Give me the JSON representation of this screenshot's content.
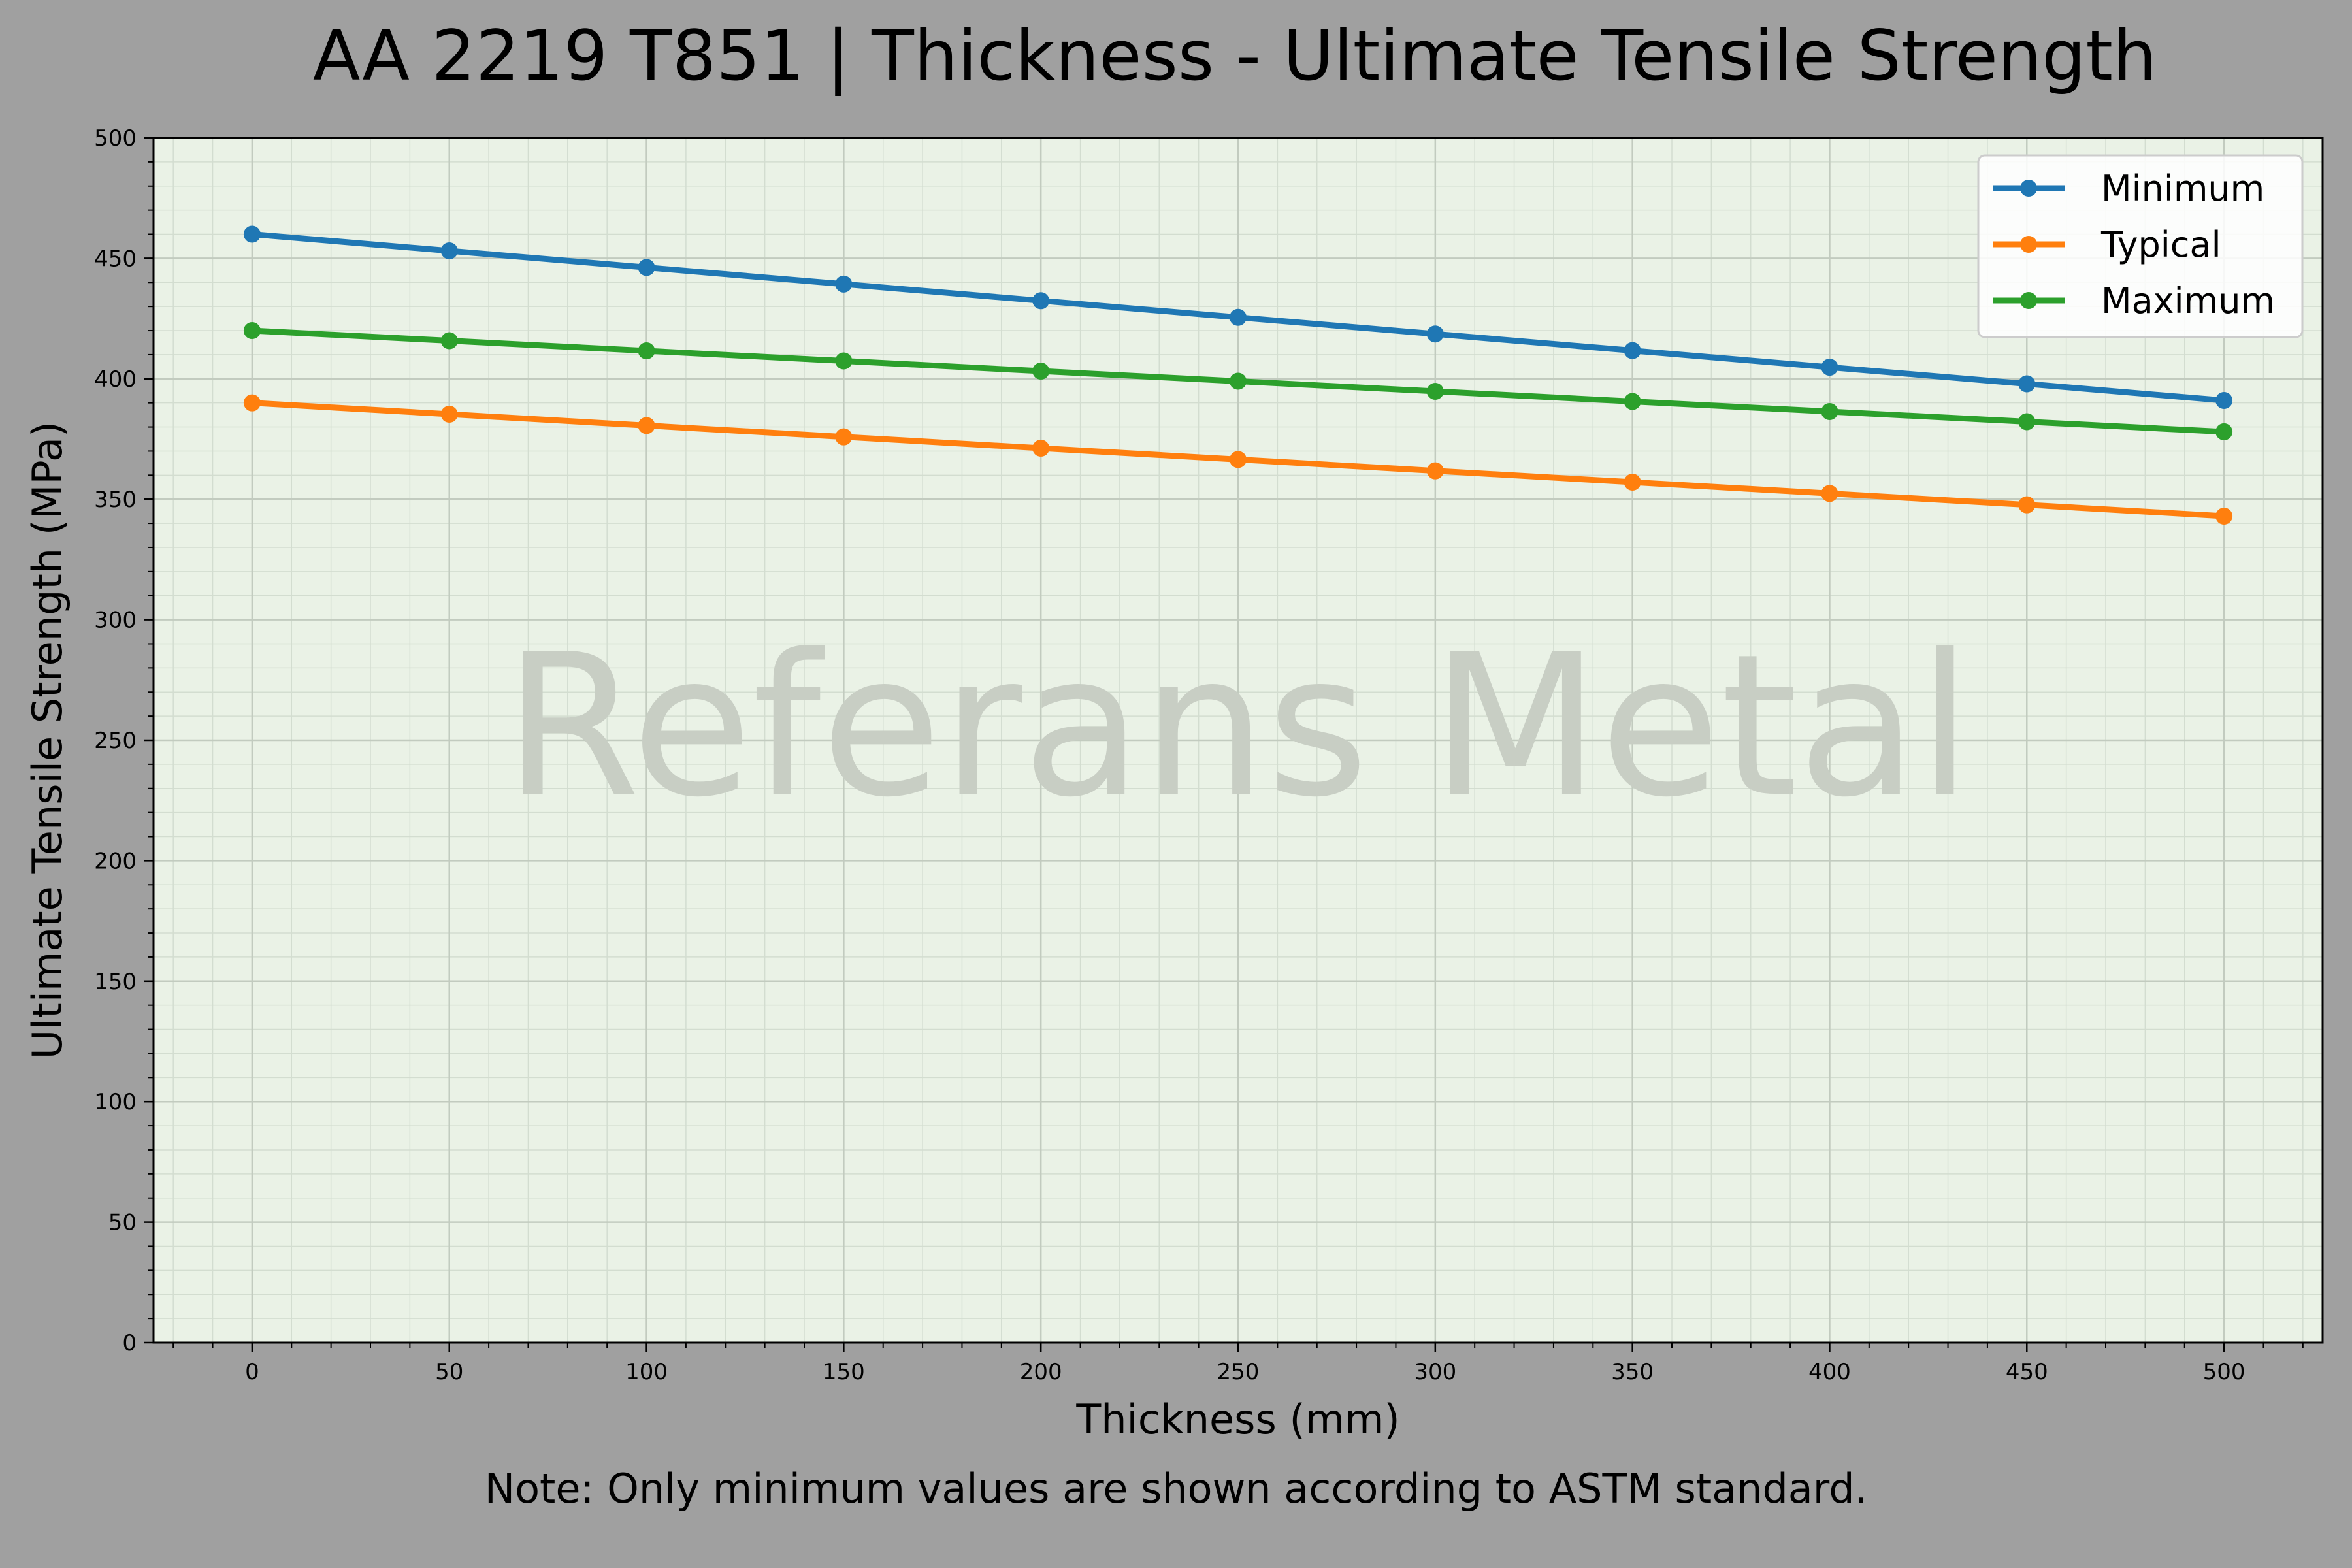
{
  "chart_data": {
    "type": "line",
    "title": "AA 2219 T851 | Thickness - Ultimate Tensile Strength",
    "xlabel": "Thickness (mm)",
    "ylabel": "Ultimate Tensile Strength (MPa)",
    "note": "Note: Only minimum values are shown according to ASTM standard.",
    "watermark": "Referans Metal",
    "x": [
      0,
      50,
      100,
      150,
      200,
      250,
      300,
      350,
      400,
      450,
      500
    ],
    "xlim": [
      -25,
      525
    ],
    "ylim": [
      0,
      500
    ],
    "x_ticks": [
      0,
      50,
      100,
      150,
      200,
      250,
      300,
      350,
      400,
      450,
      500
    ],
    "y_ticks": [
      0,
      50,
      100,
      150,
      200,
      250,
      300,
      350,
      400,
      450,
      500
    ],
    "grid": true,
    "legend_position": "top-right",
    "series": [
      {
        "name": "Minimum",
        "color": "#1f77b4",
        "values": [
          460,
          453.1,
          446.2,
          439.3,
          432.4,
          425.5,
          418.6,
          411.7,
          404.8,
          397.9,
          391
        ]
      },
      {
        "name": "Typical",
        "color": "#ff7f0e",
        "values": [
          390,
          385.3,
          380.6,
          375.9,
          371.2,
          366.5,
          361.8,
          357.1,
          352.4,
          347.7,
          343
        ]
      },
      {
        "name": "Maximum",
        "color": "#2ca02c",
        "values": [
          420,
          415.8,
          411.6,
          407.4,
          403.2,
          399,
          394.8,
          390.6,
          386.4,
          382.2,
          378
        ]
      }
    ],
    "colors": {
      "background": "#a0a0a0",
      "plot_background": "#eaf2e6",
      "watermark": "#c8cec4"
    }
  }
}
